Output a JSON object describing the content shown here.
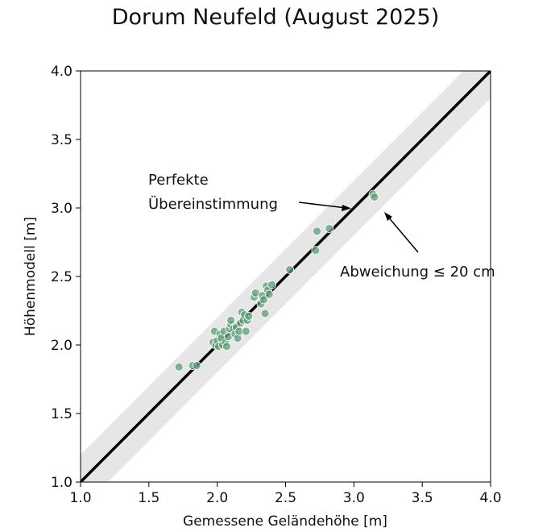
{
  "chart_data": {
    "type": "scatter",
    "title": "Dorum Neufeld (August 2025)",
    "xlabel": "Gemessene Geländehöhe [m]",
    "ylabel": "Höhenmodell [m]",
    "xlim": [
      1.0,
      4.0
    ],
    "ylim": [
      1.0,
      4.0
    ],
    "x_ticks": [
      "1.0",
      "1.5",
      "2.0",
      "2.5",
      "3.0",
      "3.5",
      "4.0"
    ],
    "y_ticks": [
      "1.0",
      "1.5",
      "2.0",
      "2.5",
      "3.0",
      "3.5",
      "4.0"
    ],
    "grid": false,
    "band_halfwidth": 0.2,
    "point_color": "#5f9e78",
    "line_color": "#000000",
    "band_color": "#e6e6e6",
    "annotations": {
      "perfect_line1": "Perfekte",
      "perfect_line2": "Übereinstimmung",
      "deviation": "Abweichung ≤ 20 cm"
    },
    "points": [
      [
        1.72,
        1.84
      ],
      [
        1.82,
        1.85
      ],
      [
        1.85,
        1.85
      ],
      [
        1.97,
        2.02
      ],
      [
        1.98,
        2.1
      ],
      [
        1.99,
        2.0
      ],
      [
        2.0,
        2.03
      ],
      [
        2.01,
        1.99
      ],
      [
        2.02,
        2.08
      ],
      [
        2.03,
        2.05
      ],
      [
        2.04,
        2.0
      ],
      [
        2.05,
        2.1
      ],
      [
        2.06,
        2.02
      ],
      [
        2.07,
        1.99
      ],
      [
        2.08,
        2.06
      ],
      [
        2.09,
        2.12
      ],
      [
        2.1,
        2.15
      ],
      [
        2.1,
        2.18
      ],
      [
        2.12,
        2.12
      ],
      [
        2.13,
        2.08
      ],
      [
        2.14,
        2.13
      ],
      [
        2.15,
        2.05
      ],
      [
        2.16,
        2.1
      ],
      [
        2.17,
        2.16
      ],
      [
        2.18,
        2.24
      ],
      [
        2.19,
        2.18
      ],
      [
        2.2,
        2.22
      ],
      [
        2.21,
        2.1
      ],
      [
        2.22,
        2.18
      ],
      [
        2.23,
        2.21
      ],
      [
        2.27,
        2.35
      ],
      [
        2.28,
        2.38
      ],
      [
        2.32,
        2.3
      ],
      [
        2.33,
        2.36
      ],
      [
        2.34,
        2.33
      ],
      [
        2.35,
        2.23
      ],
      [
        2.36,
        2.43
      ],
      [
        2.37,
        2.4
      ],
      [
        2.38,
        2.37
      ],
      [
        2.4,
        2.44
      ],
      [
        2.53,
        2.55
      ],
      [
        2.72,
        2.69
      ],
      [
        2.73,
        2.83
      ],
      [
        2.82,
        2.85
      ],
      [
        3.14,
        3.1
      ],
      [
        3.15,
        3.08
      ]
    ]
  }
}
